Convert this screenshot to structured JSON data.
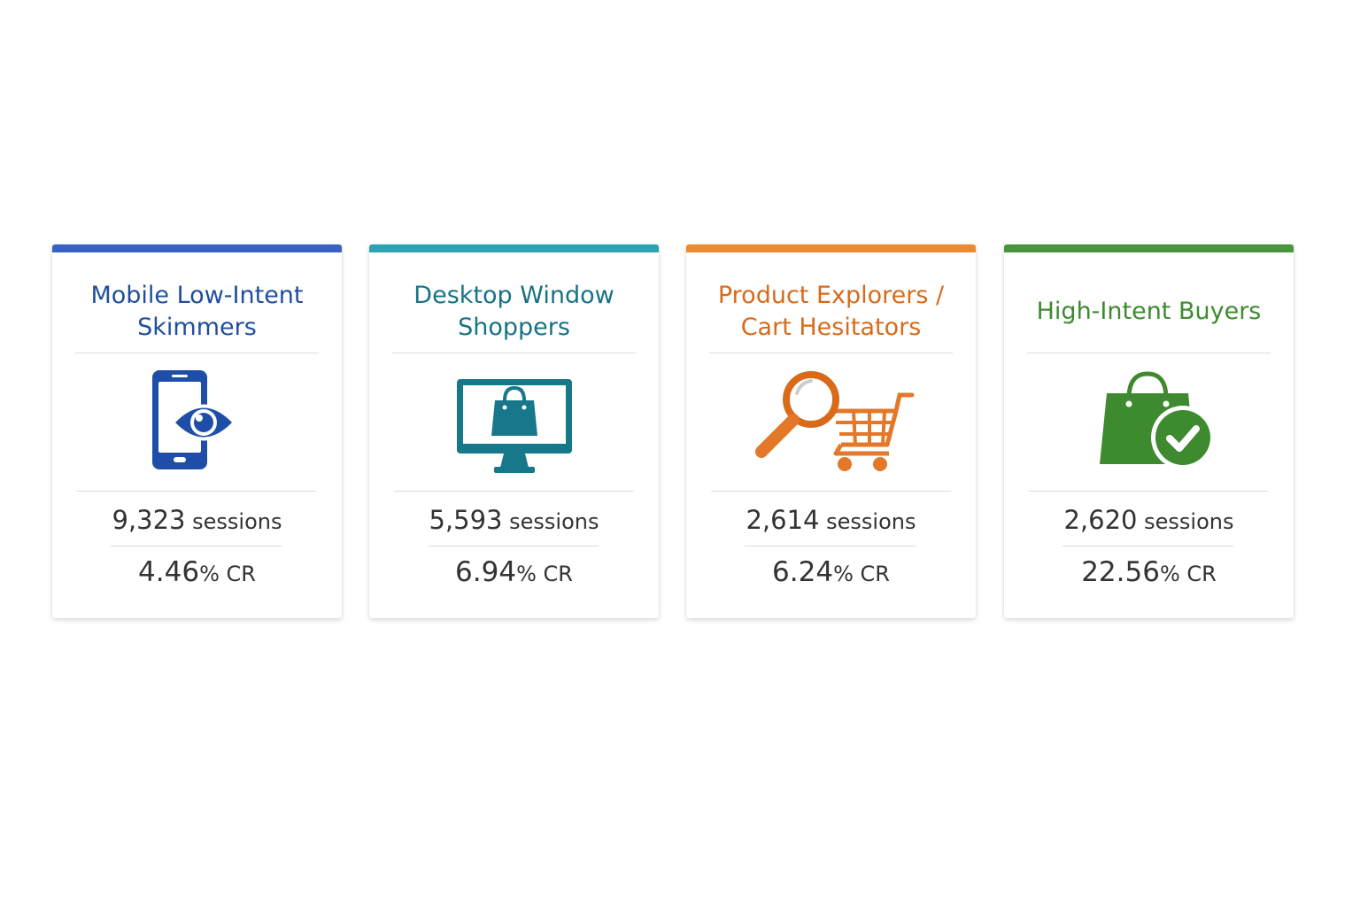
{
  "segments": [
    {
      "title_line1": "Mobile Low-Intent",
      "title_line2": "Skimmers",
      "sessions_value": "9,323",
      "sessions_unit": " sessions",
      "cr_value": "4.46",
      "cr_unit": "% CR",
      "color": "#1f4e9e",
      "accent": "#3762c4",
      "icon": "mobile-eye-icon"
    },
    {
      "title_line1": "Desktop Window",
      "title_line2": "Shoppers",
      "sessions_value": "5,593",
      "sessions_unit": " sessions",
      "cr_value": "6.94",
      "cr_unit": "% CR",
      "color": "#177285",
      "accent": "#2aa3b3",
      "icon": "desktop-shopping-bag-icon"
    },
    {
      "title_line1": "Product Explorers /",
      "title_line2": "Cart Hesitators",
      "sessions_value": "2,614",
      "sessions_unit": " sessions",
      "cr_value": "6.24",
      "cr_unit": "% CR",
      "color": "#d86a1a",
      "accent": "#eb8a30",
      "icon": "magnifier-cart-icon"
    },
    {
      "title_line1": "High-Intent Buyers",
      "title_line2": "",
      "sessions_value": "2,620",
      "sessions_unit": " sessions",
      "cr_value": "22.56",
      "cr_unit": "% CR",
      "color": "#3d8a30",
      "accent": "#48963c",
      "icon": "shopping-bag-check-icon"
    }
  ]
}
